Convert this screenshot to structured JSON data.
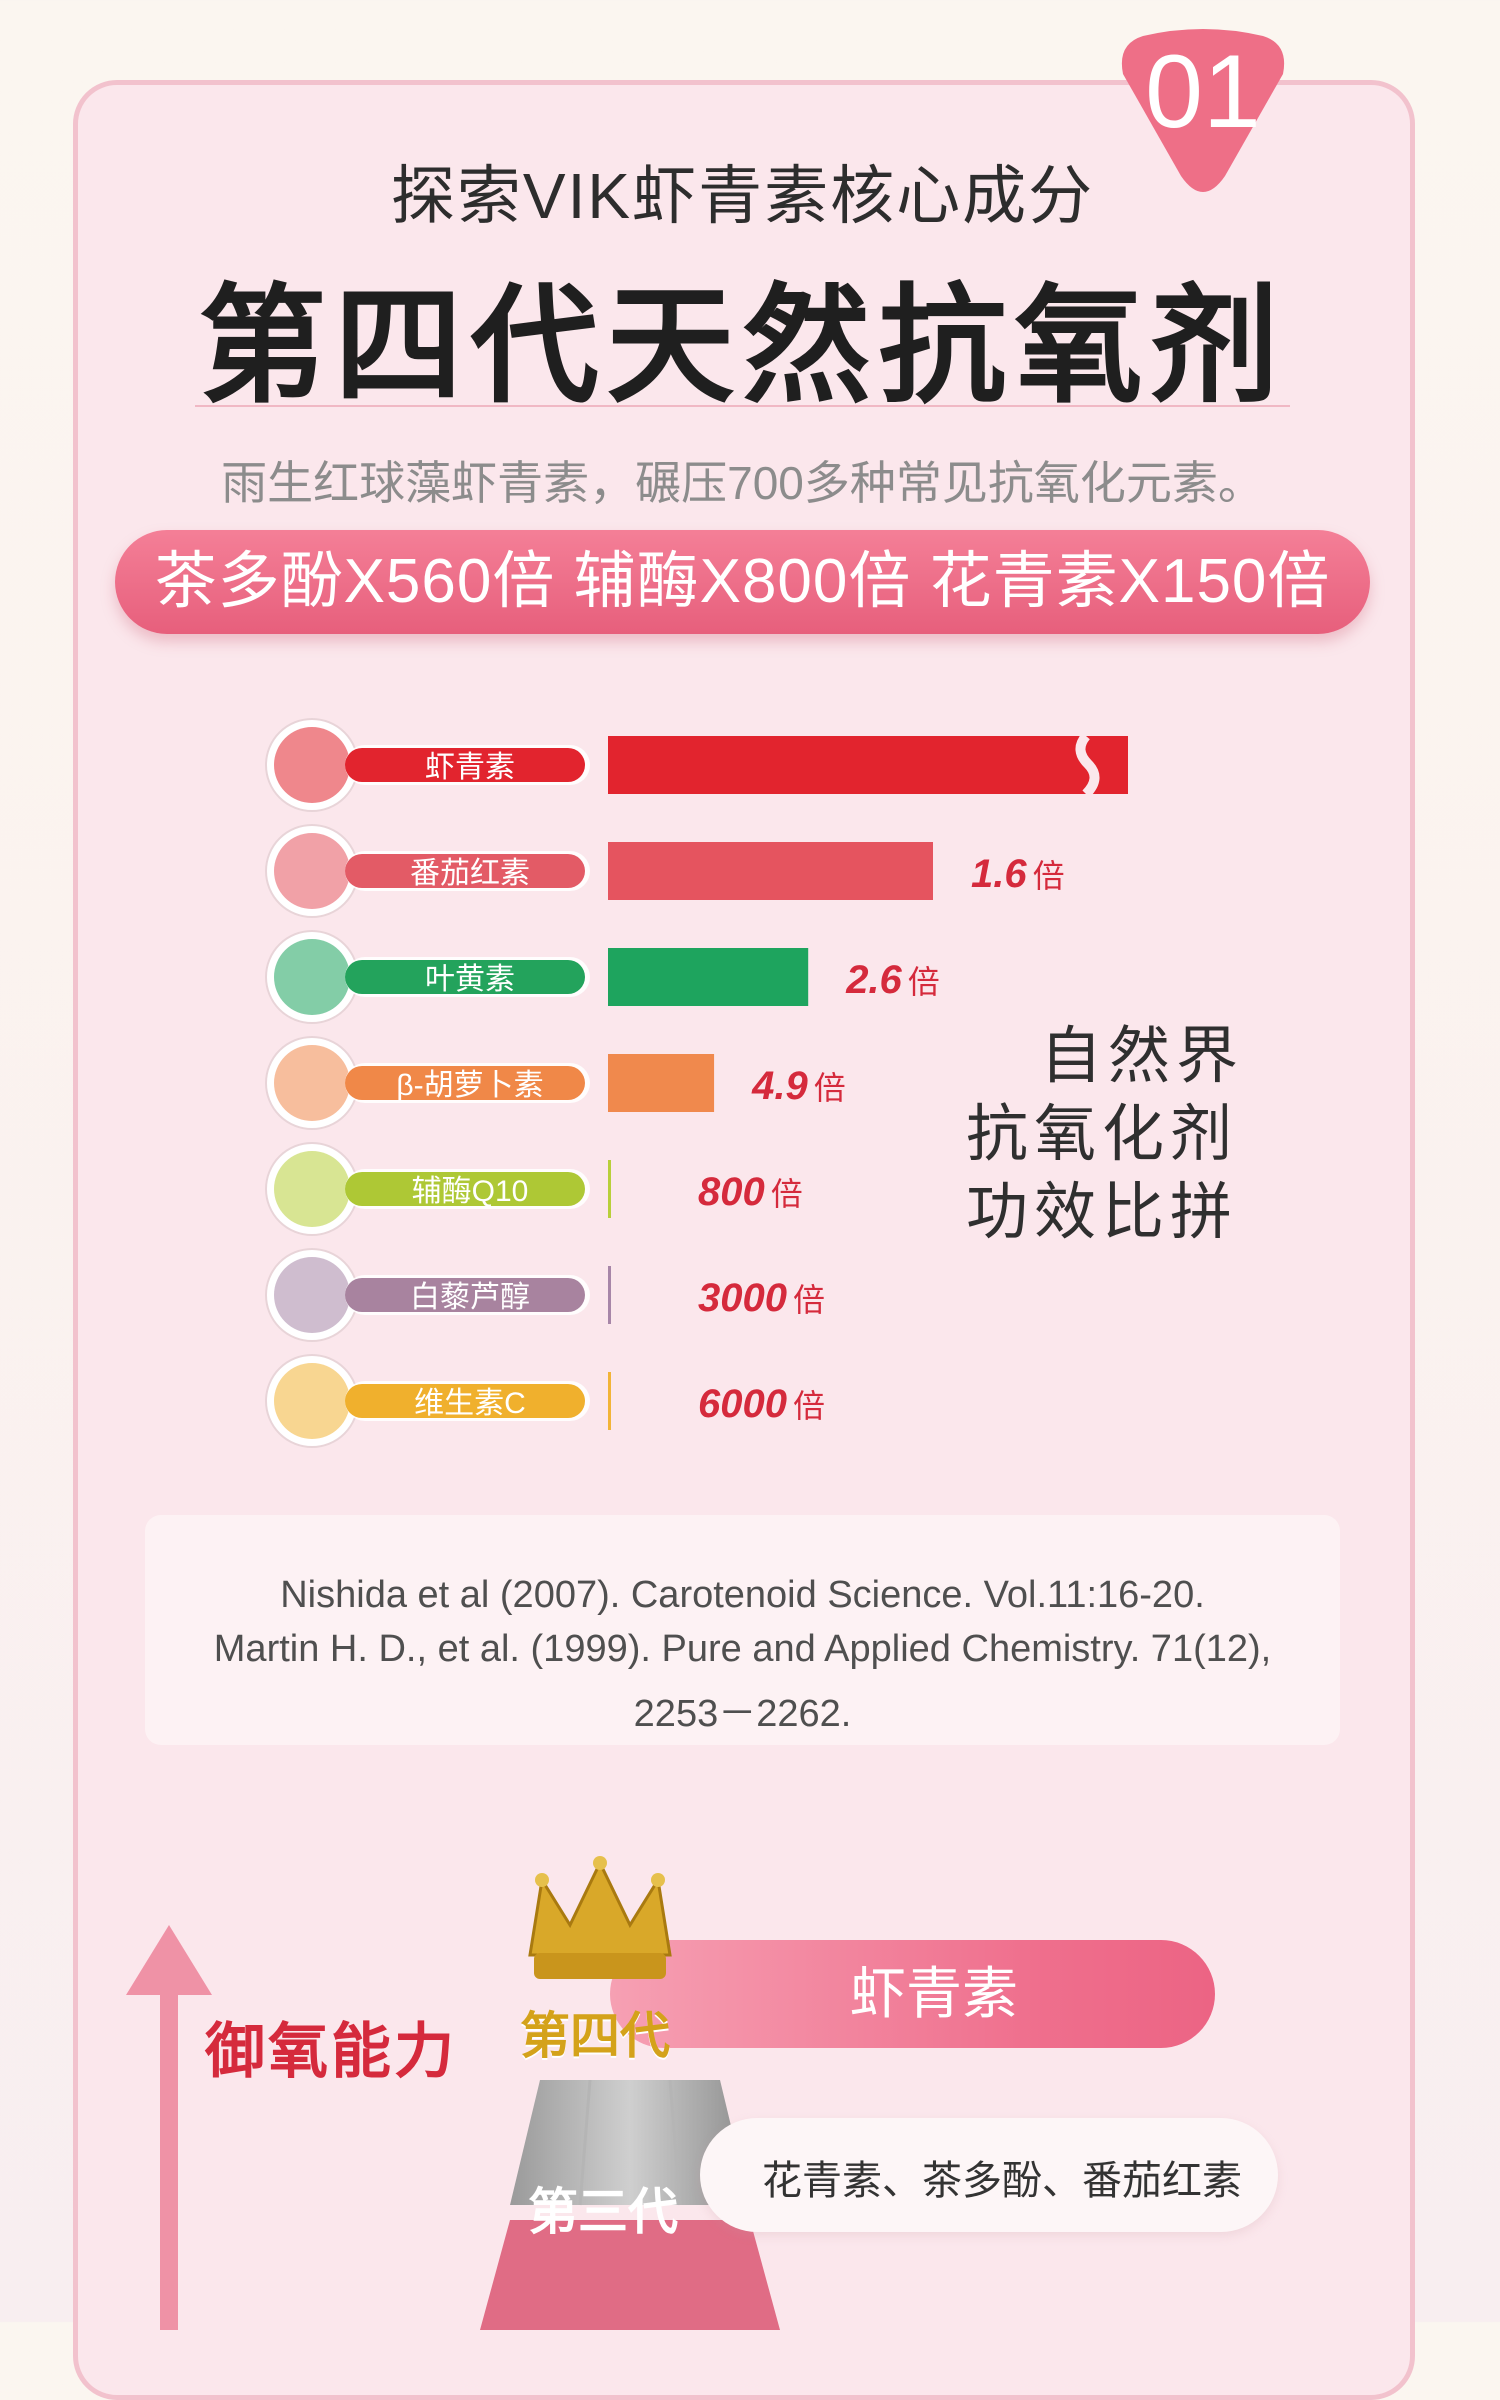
{
  "badge": "01",
  "subtitle": "探索VIK虾青素核心成分",
  "title": "第四代天然抗氧剂",
  "description": "雨生红球藻虾青素，碾压700多种常见抗氧化元素。",
  "highlight": "茶多酚X560倍 辅酶X800倍 花青素X150倍",
  "side_note": [
    "自然界",
    "抗氧化剂",
    "功效比拼"
  ],
  "references": [
    "Nishida et al (2007). Carotenoid Science. Vol.11:16-20.",
    "Martin H. D., et al. (1999). Pure and Applied Chemistry. 71(12),",
    "2253－2262."
  ],
  "pyramid": {
    "axis_label": "御氧能力",
    "gen4_label": "第四代",
    "gen4_value": "虾青素",
    "gen3_label": "第三代",
    "gen3_value": "花青素、茶多酚、番茄红素"
  },
  "colors": {
    "primary": "#e75f7c",
    "red_text": "#d52a3c"
  },
  "chart_data": {
    "type": "bar",
    "orientation": "horizontal",
    "categories": [
      "虾青素",
      "番茄红素",
      "叶黄素",
      "β-胡萝卜素",
      "辅酶Q10",
      "白藜芦醇",
      "维生素C"
    ],
    "value_labels": [
      "",
      "1.6",
      "2.6",
      "4.9",
      "800",
      "3000",
      "6000"
    ],
    "unit": "倍",
    "relative_strength": [
      1,
      0.625,
      0.385,
      0.204,
      0.00125,
      0.000333,
      0.000167
    ],
    "bar_colors": [
      "#e2242e",
      "#e5545f",
      "#1ea45e",
      "#f0894d",
      "#b8cf3a",
      "#a786a8",
      "#f2b437"
    ],
    "label_colors": [
      "#e2242e",
      "#e35b66",
      "#23a35c",
      "#f08848",
      "#aec835",
      "#a8839f",
      "#f0b02d"
    ],
    "axis_break_on_first_bar": true
  }
}
